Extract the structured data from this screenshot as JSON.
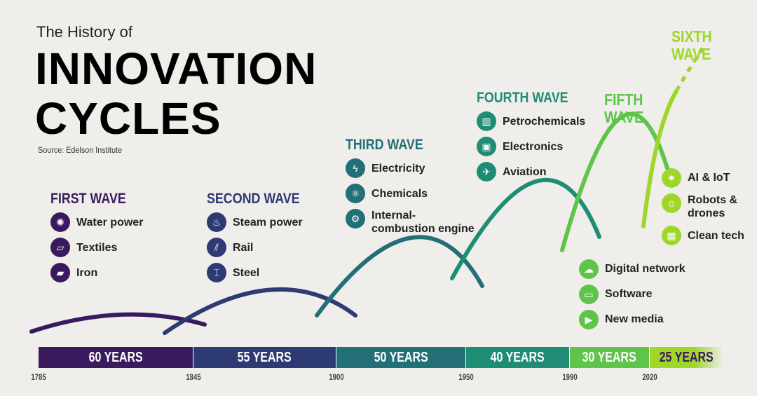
{
  "title": {
    "line1": "The History of",
    "line2": "INNOVATION",
    "line3": "CYCLES",
    "source": "Source: Edelson Institute"
  },
  "waves": [
    {
      "title": "FIRST WAVE",
      "color": "#3a1a5e",
      "items": [
        {
          "label": "Water power",
          "icon": "water-wheel-icon"
        },
        {
          "label": "Textiles",
          "icon": "fabric-icon"
        },
        {
          "label": "Iron",
          "icon": "iron-ingot-icon"
        }
      ]
    },
    {
      "title": "SECOND WAVE",
      "color": "#2e3a73",
      "items": [
        {
          "label": "Steam power",
          "icon": "steam-engine-icon"
        },
        {
          "label": "Rail",
          "icon": "rail-track-icon"
        },
        {
          "label": "Steel",
          "icon": "steel-beam-icon"
        }
      ]
    },
    {
      "title": "THIRD WAVE",
      "color": "#236f78",
      "items": [
        {
          "label": "Electricity",
          "icon": "lightning-icon"
        },
        {
          "label": "Chemicals",
          "icon": "molecule-icon"
        },
        {
          "label": "Internal-combustion engine",
          "icon": "engine-icon"
        }
      ]
    },
    {
      "title": "FOURTH WAVE",
      "color": "#1f8c76",
      "items": [
        {
          "label": "Petrochemicals",
          "icon": "refinery-icon"
        },
        {
          "label": "Electronics",
          "icon": "chip-icon"
        },
        {
          "label": "Aviation",
          "icon": "airplane-icon"
        }
      ]
    },
    {
      "title": "FIFTH WAVE",
      "color": "#5ec44a",
      "items": [
        {
          "label": "Digital network",
          "icon": "cloud-network-icon"
        },
        {
          "label": "Software",
          "icon": "monitor-icon"
        },
        {
          "label": "New media",
          "icon": "play-screen-icon"
        }
      ]
    },
    {
      "title": "SIXTH WAVE",
      "color": "#9fd62a",
      "items": [
        {
          "label": "AI & IoT",
          "icon": "ai-brain-icon"
        },
        {
          "label": "Robots & drones",
          "icon": "robot-icon"
        },
        {
          "label": "Clean tech",
          "icon": "solar-panel-icon"
        }
      ]
    }
  ],
  "timeline": {
    "segments": [
      "60 YEARS",
      "55 YEARS",
      "50 YEARS",
      "40 YEARS",
      "30 YEARS",
      "25 YEARS"
    ],
    "years": [
      "1785",
      "1845",
      "1900",
      "1950",
      "1990",
      "2020"
    ]
  }
}
